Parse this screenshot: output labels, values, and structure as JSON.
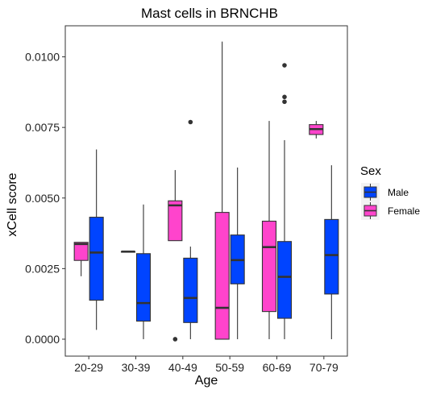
{
  "chart_data": {
    "type": "boxplot",
    "title": "Mast cells in BRNCHB",
    "xlabel": "Age",
    "ylabel": "xCell score",
    "categories": [
      "20-29",
      "30-39",
      "40-49",
      "50-59",
      "60-69",
      "70-79"
    ],
    "yticks": [
      "0.0000",
      "0.0025",
      "0.0050",
      "0.0075",
      "0.0100"
    ],
    "ytick_values": [
      0,
      0.0025,
      0.005,
      0.0075,
      0.01
    ],
    "ylim": [
      -0.0006,
      0.0111
    ],
    "legend": {
      "title": "Sex",
      "position": "right"
    },
    "grid": false,
    "series": [
      {
        "name": "Female",
        "color": "#FF44CC",
        "boxes": [
          {
            "category": "20-29",
            "min": 0.00223,
            "q1": 0.00279,
            "median": 0.00337,
            "q3": 0.00343,
            "max": 0.00343,
            "outliers": []
          },
          {
            "category": "30-39",
            "min": 0.0031,
            "q1": 0.0031,
            "median": 0.0031,
            "q3": 0.0031,
            "max": 0.0031,
            "outliers": []
          },
          {
            "category": "40-49",
            "min": 0.00349,
            "q1": 0.00349,
            "median": 0.00474,
            "q3": 0.0049,
            "max": 0.00599,
            "outliers": [
              0.0
            ]
          },
          {
            "category": "50-59",
            "min": 0.0,
            "q1": 0.0,
            "median": 0.00111,
            "q3": 0.00449,
            "max": 0.01054,
            "outliers": []
          },
          {
            "category": "60-69",
            "min": 0.0,
            "q1": 0.00098,
            "median": 0.00326,
            "q3": 0.00418,
            "max": 0.00773,
            "outliers": []
          },
          {
            "category": "70-79",
            "min": 0.00711,
            "q1": 0.00725,
            "median": 0.00744,
            "q3": 0.0076,
            "max": 0.00773,
            "outliers": []
          }
        ]
      },
      {
        "name": "Male",
        "color": "#0044FF",
        "boxes": [
          {
            "category": "20-29",
            "min": 0.00033,
            "q1": 0.00138,
            "median": 0.00307,
            "q3": 0.00432,
            "max": 0.00672,
            "outliers": []
          },
          {
            "category": "30-39",
            "min": 0.0,
            "q1": 0.00064,
            "median": 0.00128,
            "q3": 0.00303,
            "max": 0.00477,
            "outliers": []
          },
          {
            "category": "40-49",
            "min": 0.0,
            "q1": 0.00059,
            "median": 0.00146,
            "q3": 0.00287,
            "max": 0.00328,
            "outliers": [
              0.00769
            ]
          },
          {
            "category": "50-59",
            "min": 0.0,
            "q1": 0.00196,
            "median": 0.0028,
            "q3": 0.00369,
            "max": 0.00608,
            "outliers": []
          },
          {
            "category": "60-69",
            "min": 0.0,
            "q1": 0.00074,
            "median": 0.00221,
            "q3": 0.00346,
            "max": 0.00705,
            "outliers": [
              0.00841,
              0.00858,
              0.0097
            ]
          },
          {
            "category": "70-79",
            "min": 0.0,
            "q1": 0.0016,
            "median": 0.00298,
            "q3": 0.00424,
            "max": 0.00616,
            "outliers": []
          }
        ]
      }
    ]
  }
}
